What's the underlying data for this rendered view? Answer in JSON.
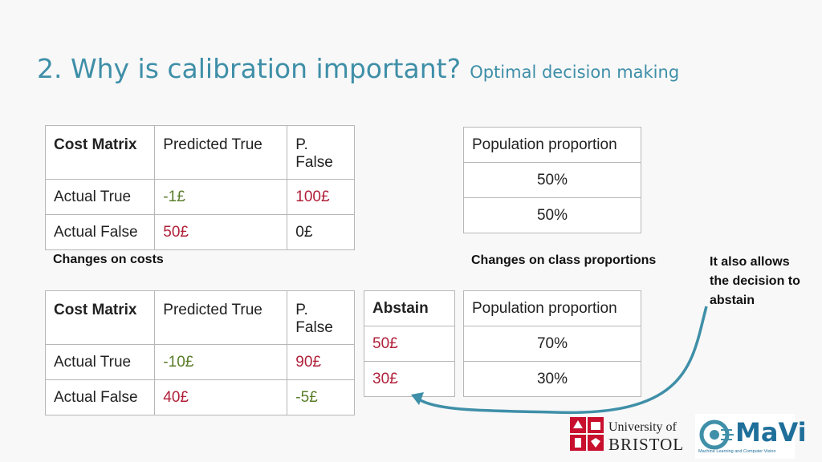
{
  "slide": {
    "title": "2. Why is calibration important?",
    "subtitle": "Optimal decision making"
  },
  "cost_table_1": {
    "header": [
      "Cost Matrix",
      "Predicted True",
      "P. False"
    ],
    "rows": [
      {
        "label": "Actual True",
        "pred_true": "-1£",
        "pred_false": "100£"
      },
      {
        "label": "Actual False",
        "pred_true": "50£",
        "pred_false": "0£"
      }
    ]
  },
  "population_table_1": {
    "header": "Population proportion",
    "values": [
      "50%",
      "50%"
    ]
  },
  "notes": {
    "costs": "Changes on costs",
    "proportions": "Changes on class proportions",
    "abstain_line1": "It also allows",
    "abstain_line2": "the decision to",
    "abstain_line3": "abstain"
  },
  "cost_table_2": {
    "header": [
      "Cost Matrix",
      "Predicted True",
      "P. False"
    ],
    "rows": [
      {
        "label": "Actual True",
        "pred_true": "-10£",
        "pred_false": "90£"
      },
      {
        "label": "Actual False",
        "pred_true": "40£",
        "pred_false": "-5£"
      }
    ]
  },
  "abstain_table": {
    "header": "Abstain",
    "values": [
      "50£",
      "30£"
    ]
  },
  "population_table_2": {
    "header": "Population proportion",
    "values": [
      "70%",
      "30%"
    ]
  },
  "logos": {
    "bristol_line1": "University of",
    "bristol_line2": "BRISTOL",
    "mavi_name": "MaVi",
    "mavi_caption": "Machine Learning and Computer Vision"
  },
  "colors": {
    "title": "#3f8fa8",
    "green_value": "#5a7d2a",
    "red_value": "#b0203a",
    "arrow": "#3f8fa8"
  }
}
